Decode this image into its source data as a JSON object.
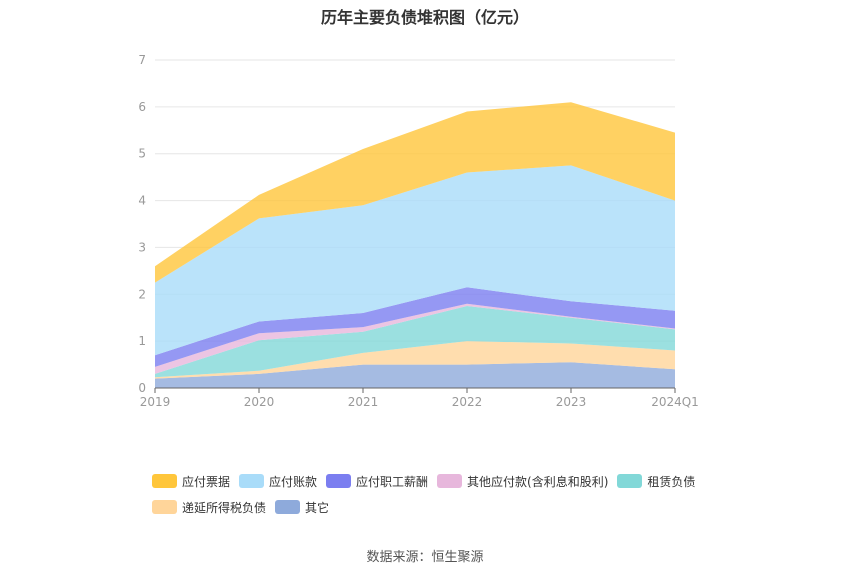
{
  "title": "历年主要负债堆积图（亿元）",
  "source": "数据来源：恒生聚源",
  "chart_data": {
    "type": "area",
    "stacked": true,
    "title": "历年主要负债堆积图（亿元）",
    "xlabel": "",
    "ylabel": "",
    "categories": [
      "2019",
      "2020",
      "2021",
      "2022",
      "2023",
      "2024Q1"
    ],
    "ylim": [
      0,
      7
    ],
    "yticks": [
      "0",
      "1",
      "2",
      "3",
      "4",
      "5",
      "6",
      "7"
    ],
    "grid": true,
    "legend_position": "bottom",
    "series": [
      {
        "name": "其它",
        "color": "#8eaadb",
        "values": [
          0.2,
          0.3,
          0.5,
          0.5,
          0.55,
          0.4
        ]
      },
      {
        "name": "递延所得税负债",
        "color": "#ffd59a",
        "values": [
          0.03,
          0.07,
          0.25,
          0.5,
          0.4,
          0.4
        ]
      },
      {
        "name": "租赁负债",
        "color": "#82d8d8",
        "values": [
          0.07,
          0.65,
          0.45,
          0.75,
          0.55,
          0.45
        ]
      },
      {
        "name": "其他应付款(含利息和股利)",
        "color": "#e7b7dc",
        "values": [
          0.15,
          0.15,
          0.1,
          0.05,
          0.02,
          0.02
        ]
      },
      {
        "name": "应付职工薪酬",
        "color": "#7b7ef0",
        "values": [
          0.25,
          0.25,
          0.3,
          0.35,
          0.33,
          0.38
        ]
      },
      {
        "name": "应付账款",
        "color": "#a9dcf9",
        "values": [
          1.55,
          2.2,
          2.3,
          2.45,
          2.9,
          2.35
        ]
      },
      {
        "name": "应付票据",
        "color": "#ffc63b",
        "values": [
          0.35,
          0.5,
          1.2,
          1.3,
          1.35,
          1.45
        ]
      }
    ]
  },
  "legend": [
    {
      "label": "应付票据",
      "color": "#ffc63b"
    },
    {
      "label": "应付账款",
      "color": "#a9dcf9"
    },
    {
      "label": "应付职工薪酬",
      "color": "#7b7ef0"
    },
    {
      "label": "其他应付款(含利息和股利)",
      "color": "#e7b7dc"
    },
    {
      "label": "租赁负债",
      "color": "#82d8d8"
    },
    {
      "label": "递延所得税负债",
      "color": "#ffd59a"
    },
    {
      "label": "其它",
      "color": "#8eaadb"
    }
  ]
}
